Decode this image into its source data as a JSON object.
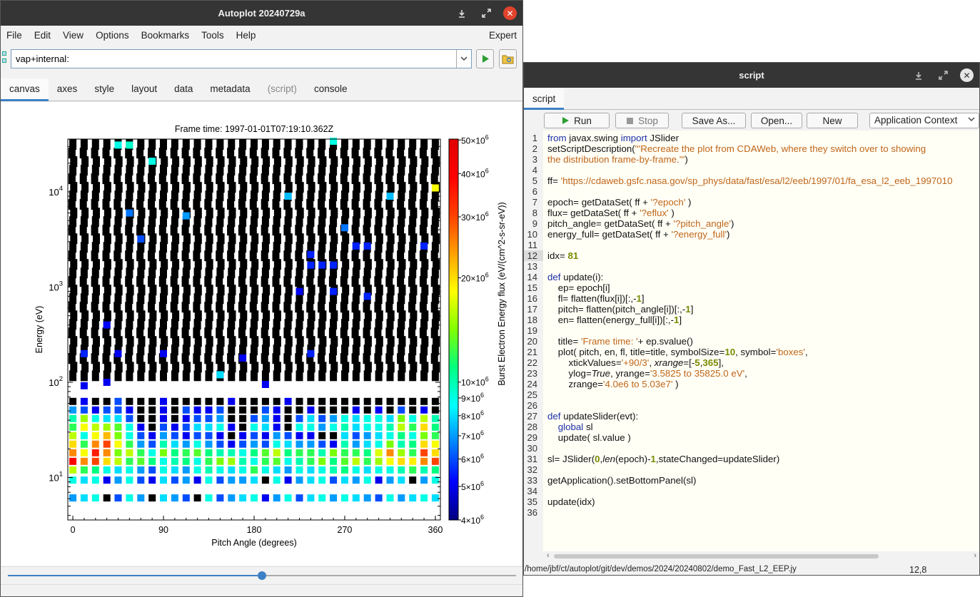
{
  "main_window": {
    "title": "Autoplot 20240729a",
    "menu": [
      "File",
      "Edit",
      "View",
      "Options",
      "Bookmarks",
      "Tools",
      "Help"
    ],
    "expert": "Expert",
    "address": "vap+internal:",
    "tabs": [
      "canvas",
      "axes",
      "style",
      "layout",
      "data",
      "metadata",
      "(script)",
      "console"
    ],
    "active_tab": "canvas",
    "disabled_tab": "(script)",
    "slider_fraction": 0.5
  },
  "chart_data": {
    "type": "heatmap",
    "title": "Frame time: 1997-01-01T07:19:10.362Z",
    "xlabel": "Pitch Angle (degrees)",
    "ylabel": "Energy (eV)",
    "zlabel": "Burst Electron Energy flux (eV/(cm^2-s-sr-eV))",
    "x_ticks": [
      "0",
      "90",
      "180",
      "270",
      "360"
    ],
    "x_tick_values": [
      0,
      90,
      180,
      270,
      360
    ],
    "xlim": [
      -5,
      365
    ],
    "y_scale": "log",
    "ylim": [
      3.5825,
      35825
    ],
    "y_ticks": [
      {
        "base": "10",
        "exp": "1",
        "value": 10
      },
      {
        "base": "10",
        "exp": "2",
        "value": 100
      },
      {
        "base": "10",
        "exp": "3",
        "value": 1000
      },
      {
        "base": "10",
        "exp": "4",
        "value": 10000
      }
    ],
    "z_scale": "log",
    "zlim": [
      4000000,
      50300000
    ],
    "z_ticks": [
      {
        "base": "50×10",
        "exp": "6",
        "value": 50000000
      },
      {
        "base": "40×10",
        "exp": "6",
        "value": 40000000
      },
      {
        "base": "30×10",
        "exp": "6",
        "value": 30000000
      },
      {
        "base": "20×10",
        "exp": "6",
        "value": 20000000
      },
      {
        "base": "10×10",
        "exp": "6",
        "value": 10000000
      },
      {
        "base": "9×10",
        "exp": "6",
        "value": 9000000
      },
      {
        "base": "8×10",
        "exp": "6",
        "value": 8000000
      },
      {
        "base": "7×10",
        "exp": "6",
        "value": 7000000
      },
      {
        "base": "6×10",
        "exp": "6",
        "value": 6000000
      },
      {
        "base": "5×10",
        "exp": "6",
        "value": 5000000
      },
      {
        "base": "4×10",
        "exp": "6",
        "value": 4000000
      }
    ],
    "colorbar": [
      "#000080",
      "#0000ff",
      "#0080ff",
      "#00ffff",
      "#00ff80",
      "#80ff00",
      "#ffff00",
      "#ffa000",
      "#ff4000",
      "#ff0000",
      "#e00000"
    ],
    "pitch_angles": [
      0,
      11.25,
      22.5,
      33.75,
      45,
      56.25,
      67.5,
      78.75,
      90,
      101.25,
      112.5,
      123.75,
      135,
      146.25,
      157.5,
      168.75,
      180,
      191.25,
      202.5,
      213.75,
      225,
      236.25,
      247.5,
      258.75,
      270,
      281.25,
      292.5,
      303.75,
      315,
      326.25,
      337.5,
      348.75,
      360
    ],
    "energies": [
      6.1,
      9.4,
      12.0,
      14.8,
      18.2,
      22.4,
      27.5,
      33.8,
      41.6,
      51.2,
      63.0,
      77.5,
      95.3,
      117.2,
      144.2,
      177.4,
      218.2,
      268.4,
      330.2,
      406.1,
      499.6,
      614.5,
      755.9,
      929.8,
      1143.7,
      1406.8,
      1730.5,
      2128.6,
      2618.3,
      3220.8,
      3961.9,
      4873.3,
      5994.8,
      7374.3,
      9070.6,
      11157.7,
      13725.1,
      16882.3,
      20766.3,
      25544.7,
      31421.8
    ],
    "flux_rows": [
      [
        "7e6",
        "8e6",
        "9e6",
        "4e6",
        "6e6",
        "9e6",
        "7e6",
        "4e6",
        "8e6",
        "7e6",
        "6e6",
        "4e6",
        "9e6",
        "6e6",
        "7e6",
        "8e6",
        "9e6",
        "5e6",
        "7e6",
        "9e6",
        "6e6",
        "8e6",
        "9e6",
        "7e6",
        "9e6",
        "8e6",
        "7e6",
        "6e6",
        "9e6",
        "7e6",
        "8e6",
        "9e6",
        "8e6"
      ],
      [
        "9e6",
        "8e6",
        "9e6",
        "5e6",
        "7e6",
        "9e6",
        "6e6",
        "5e6",
        "8e6",
        "6e6",
        "7e6",
        "5e6",
        "9e6",
        "6e6",
        "7e6",
        "7e6",
        "8e6",
        "4e6",
        "9e6",
        "5e6",
        "7e6",
        "8e6",
        "9e6",
        "6e6",
        "8e6",
        "7e6",
        "9e6",
        "5e6",
        "7e6",
        "8e6",
        "4e6",
        "7e6",
        "9e6"
      ],
      [
        "1.6e7",
        "1.2e7",
        "1.1e7",
        "9e6",
        "8e6",
        "9e6",
        "7e6",
        "6e6",
        "9e6",
        "8e6",
        "7e6",
        "9e6",
        "1e7",
        "9e6",
        "8e6",
        "9e6",
        "1.2e7",
        "9e6",
        "8e6",
        "7e6",
        "9e6",
        "8e6",
        "9e6",
        "1e7",
        "1.1e7",
        "9e6",
        "8e6",
        "9e6",
        "9e6",
        "1e7",
        "1.2e7",
        "1e7",
        "1.1e7"
      ],
      [
        "4e7",
        "2.5e7",
        "3e7",
        "2e7",
        "1.6e7",
        "1.2e7",
        "1.3e7",
        "1.1e7",
        "9e6",
        "1e7",
        "1.1e7",
        "9e6",
        "1.2e7",
        "1.4e7",
        "1.5e7",
        "1e7",
        "9e6",
        "1.2e7",
        "1.3e7",
        "9e6",
        "1e7",
        "1.2e7",
        "1.4e7",
        "1.1e7",
        "1.3e7",
        "1.6e7",
        "1.2e7",
        "1.5e7",
        "1.8e7",
        "2e7",
        "1.9e7",
        "2.5e7",
        "3e7"
      ],
      [
        "2.5e7",
        "1.8e7",
        "3.5e7",
        "2.5e7",
        "1.4e7",
        "1.6e7",
        "1.2e7",
        "9e6",
        "1.4e7",
        "1.1e7",
        "1.2e7",
        "1.3e7",
        "1.1e7",
        "1e7",
        "1e7",
        "9e6",
        "1.1e7",
        "1.3e7",
        "1.6e7",
        "1.1e7",
        "1.2e7",
        "1.2e7",
        "1e7",
        "1.4e7",
        "1.2e7",
        "1.2e7",
        "1.1e7",
        "1.7e7",
        "2.5e7",
        "1.5e7",
        "1.2e7",
        "3e7",
        "2e7"
      ],
      [
        "2e7",
        "1.2e7",
        "2.5e7",
        "3e7",
        "1.8e7",
        "1.2e7",
        "7e6",
        "6e6",
        "1e7",
        "8e6",
        "7e6",
        "9e6",
        "7e6",
        "6e6",
        "5e6",
        "6e6",
        "7e6",
        "6e6",
        "9e6",
        "8e6",
        "7e6",
        "7e6",
        "6e6",
        "5e6",
        "1e7",
        "7e6",
        "8e6",
        "9e6",
        "1.4e7",
        "1e7",
        "1.1e7",
        "2e7",
        "1.8e7"
      ],
      [
        "1.6e7",
        "9e6",
        "1.8e7",
        "2.2e7",
        "1.4e7",
        "9e6",
        "6e6",
        "5e6",
        "7e6",
        "6e6",
        "5e6",
        "6e6",
        "6e6",
        "5e6",
        "4e6",
        "5e6",
        "6e6",
        "5e6",
        "7e6",
        "6e6",
        "5e6",
        "5e6",
        "4e6",
        "4e6",
        "8e6",
        "6e6",
        "7e6",
        "8e6",
        "9e6",
        "1.1e7",
        "9e6",
        "1.4e7",
        "1.2e7"
      ],
      [
        "1.2e7",
        "1.8e7",
        "1.6e7",
        "1.5e7",
        "1.3e7",
        "9e6",
        "5e6",
        "4e6",
        "6e6",
        "5e6",
        "6e6",
        "8e6",
        "8e6",
        "9e6",
        "5e6",
        "4e6",
        "9e6",
        "8e6",
        "5e6",
        "4e6",
        "9e6",
        "9e6",
        "7e6",
        "9e6",
        "1e7",
        "8e6",
        "9e6",
        "9e6",
        "1e7",
        "1.6e7",
        "1.2e7",
        "2e7",
        "1.1e7"
      ],
      [
        "1e7",
        "1.5e7",
        "9e6",
        "8e6",
        "8e6",
        "6e6",
        "4e6",
        "4e6",
        "5e6",
        "4e6",
        "5e6",
        "6e6",
        "6e6",
        "7e6",
        "4e6",
        "4e6",
        "6e6",
        "7e6",
        "5e6",
        "4e6",
        "6e6",
        "8e6",
        "6e6",
        "7e6",
        "9e6",
        "8e6",
        "9e6",
        "9e6",
        "8e6",
        "1.4e7",
        "9e6",
        "1.6e7",
        "1e7"
      ],
      [
        "7e6",
        "6e6",
        "5e6",
        "6e6",
        "6e6",
        "5e6",
        "4e6",
        "4e6",
        "5e6",
        "4e6",
        "6e6",
        "5e6",
        "5e6",
        "6e6",
        "4e6",
        "4e6",
        "4e6",
        "6e6",
        "5e6",
        "4e6",
        "4e6",
        "5e6",
        "4e6",
        "4e6",
        "4e6",
        "5e6",
        "4e6",
        "5e6",
        "4e6",
        "6e6",
        "4e6",
        "5e6",
        "4e6"
      ],
      [
        "4e6",
        "5e6",
        "4e6",
        "4e6",
        "6e6",
        "4e6",
        "4e6",
        "4e6",
        "5e6",
        "4e6",
        "4e6",
        "4e6",
        "4e6",
        "4e6",
        "5e6",
        "4e6",
        "4e6",
        "4e6",
        "4e6",
        "5e6",
        "4e6",
        "4e6",
        "4e6",
        "4e6",
        "4e6",
        "4e6",
        "4e6",
        "4e6",
        "4e6",
        "4e6",
        "4e6",
        "4e6",
        "4e6"
      ]
    ],
    "sparse_points": [
      {
        "x": 11.25,
        "y": 92,
        "z": 5000000
      },
      {
        "x": 33.75,
        "y": 100,
        "z": 5000000
      },
      {
        "x": 33.75,
        "y": 400,
        "z": 5200000
      },
      {
        "x": 11.25,
        "y": 200,
        "z": 5500000
      },
      {
        "x": 45,
        "y": 200,
        "z": 5000000
      },
      {
        "x": 90,
        "y": 200,
        "z": 5000000
      },
      {
        "x": 56.25,
        "y": 6000,
        "z": 6500000
      },
      {
        "x": 67.5,
        "y": 3200,
        "z": 6000000
      },
      {
        "x": 112.5,
        "y": 5600,
        "z": 7000000
      },
      {
        "x": 146.25,
        "y": 120,
        "z": 8000000
      },
      {
        "x": 168.75,
        "y": 180,
        "z": 5000000
      },
      {
        "x": 191.25,
        "y": 95,
        "z": 5000000
      },
      {
        "x": 213.75,
        "y": 9000,
        "z": 7500000
      },
      {
        "x": 225,
        "y": 900,
        "z": 5000000
      },
      {
        "x": 236.25,
        "y": 2200,
        "z": 5500000
      },
      {
        "x": 236.25,
        "y": 1700,
        "z": 5500000
      },
      {
        "x": 247.5,
        "y": 1700,
        "z": 5500000
      },
      {
        "x": 258.75,
        "y": 1700,
        "z": 5500000
      },
      {
        "x": 258.75,
        "y": 900,
        "z": 5500000
      },
      {
        "x": 236.25,
        "y": 200,
        "z": 5500000
      },
      {
        "x": 270,
        "y": 4200,
        "z": 6500000
      },
      {
        "x": 281.25,
        "y": 2700,
        "z": 5500000
      },
      {
        "x": 292.5,
        "y": 2700,
        "z": 5500000
      },
      {
        "x": 292.5,
        "y": 800,
        "z": 5500000
      },
      {
        "x": 315,
        "y": 9000,
        "z": 7500000
      },
      {
        "x": 348.75,
        "y": 2700,
        "z": 5500000
      },
      {
        "x": 360,
        "y": 11000,
        "z": 18000000.0
      },
      {
        "x": 78.75,
        "y": 21000,
        "z": 9000000
      },
      {
        "x": 56.25,
        "y": 31000,
        "z": 9500000
      },
      {
        "x": 45,
        "y": 31000,
        "z": 9000000
      },
      {
        "x": 258.75,
        "y": 34000,
        "z": 9000000
      }
    ]
  },
  "script_window": {
    "title": "script",
    "tab": "script",
    "buttons": {
      "run": "Run",
      "stop": "Stop",
      "save_as": "Save As...",
      "open": "Open...",
      "new": "New"
    },
    "context": "Application Context",
    "line_count": 36,
    "current_line": 12,
    "path": "/home/jbf/ct/autoplot/git/dev/demos/2024/20240802/demo_Fast_L2_EEP.jy",
    "caret": "12,8",
    "code": [
      {
        "n": 1,
        "tok": [
          [
            "kw",
            "from "
          ],
          [
            "",
            "javax.swing "
          ],
          [
            "kw",
            "import "
          ],
          [
            "",
            "JSlider"
          ]
        ]
      },
      {
        "n": 2,
        "tok": [
          [
            "",
            "setScriptDescription("
          ],
          [
            "str",
            "'''Recreate the plot from CDAWeb, where they switch over to showing"
          ]
        ]
      },
      {
        "n": 3,
        "tok": [
          [
            "str",
            "the distribution frame-by-frame.'''"
          ],
          [
            "",
            ")"
          ]
        ]
      },
      {
        "n": 4,
        "tok": []
      },
      {
        "n": 5,
        "tok": [
          [
            "",
            "ff= "
          ],
          [
            "str",
            "'https://cdaweb.gsfc.nasa.gov/sp_phys/data/fast/esa/l2/eeb/1997/01/fa_esa_l2_eeb_1997010"
          ]
        ]
      },
      {
        "n": 6,
        "tok": []
      },
      {
        "n": 7,
        "tok": [
          [
            "",
            "epoch= getDataSet( ff + "
          ],
          [
            "str",
            "'?epoch'"
          ],
          [
            "",
            " )"
          ]
        ]
      },
      {
        "n": 8,
        "tok": [
          [
            "",
            "flux= getDataSet( ff + "
          ],
          [
            "str",
            "'?eflux'"
          ],
          [
            "",
            " )"
          ]
        ]
      },
      {
        "n": 9,
        "tok": [
          [
            "",
            "pitch_angle= getDataSet( ff + "
          ],
          [
            "str",
            "'?pitch_angle'"
          ],
          [
            "",
            ")"
          ]
        ]
      },
      {
        "n": 10,
        "tok": [
          [
            "",
            "energy_full= getDataSet( ff + "
          ],
          [
            "str",
            "'?energy_full'"
          ],
          [
            "",
            ")"
          ]
        ]
      },
      {
        "n": 11,
        "tok": []
      },
      {
        "n": 12,
        "tok": [
          [
            "",
            "idx= "
          ],
          [
            "num",
            "81"
          ]
        ]
      },
      {
        "n": 13,
        "tok": []
      },
      {
        "n": 14,
        "tok": [
          [
            "kw",
            "def "
          ],
          [
            "",
            "update(i):"
          ]
        ]
      },
      {
        "n": 15,
        "tok": [
          [
            "",
            "    ep= epoch[i]"
          ]
        ]
      },
      {
        "n": 16,
        "tok": [
          [
            "",
            "    fl= flatten(flux[i])[:,-"
          ],
          [
            "num",
            "1"
          ],
          [
            "",
            "]"
          ]
        ]
      },
      {
        "n": 17,
        "tok": [
          [
            "",
            "    pitch= flatten(pitch_angle[i])[:,-"
          ],
          [
            "num",
            "1"
          ],
          [
            "",
            "]"
          ]
        ]
      },
      {
        "n": 18,
        "tok": [
          [
            "",
            "    en= flatten(energy_full[i])[:,-"
          ],
          [
            "num",
            "1"
          ],
          [
            "",
            "]"
          ]
        ]
      },
      {
        "n": 19,
        "tok": []
      },
      {
        "n": 20,
        "tok": [
          [
            "",
            "    title= "
          ],
          [
            "str",
            "'Frame time: '"
          ],
          [
            "",
            "+ ep.svalue()"
          ]
        ]
      },
      {
        "n": 21,
        "tok": [
          [
            "",
            "    plot( pitch, en, fl, title=title, symbolSize="
          ],
          [
            "num",
            "10"
          ],
          [
            "",
            ", symbol="
          ],
          [
            "str",
            "'boxes'"
          ],
          [
            "",
            ","
          ]
        ]
      },
      {
        "n": 22,
        "tok": [
          [
            "",
            "        xtickValues="
          ],
          [
            "str",
            "'+90/3'"
          ],
          [
            "",
            ", "
          ],
          [
            "it",
            "xrange"
          ],
          [
            "",
            "=[-"
          ],
          [
            "num",
            "5"
          ],
          [
            "",
            ","
          ],
          [
            "num",
            "365"
          ],
          [
            "",
            "],"
          ]
        ]
      },
      {
        "n": 23,
        "tok": [
          [
            "",
            "        ylog="
          ],
          [
            "it",
            "True"
          ],
          [
            "",
            ", yrange="
          ],
          [
            "str",
            "'3.5825 to 35825.0 eV'"
          ],
          [
            "",
            ","
          ]
        ]
      },
      {
        "n": 24,
        "tok": [
          [
            "",
            "        zrange="
          ],
          [
            "str",
            "'4.0e6 to 5.03e7'"
          ],
          [
            "",
            " )"
          ]
        ]
      },
      {
        "n": 25,
        "tok": []
      },
      {
        "n": 26,
        "tok": []
      },
      {
        "n": 27,
        "tok": [
          [
            "kw",
            "def "
          ],
          [
            "",
            "updateSlider(evt):"
          ]
        ]
      },
      {
        "n": 28,
        "tok": [
          [
            "kw",
            "    global "
          ],
          [
            "",
            "sl"
          ]
        ]
      },
      {
        "n": 29,
        "tok": [
          [
            "",
            "    update( sl.value )"
          ]
        ]
      },
      {
        "n": 30,
        "tok": []
      },
      {
        "n": 31,
        "tok": [
          [
            "",
            "sl= JSlider("
          ],
          [
            "num",
            "0"
          ],
          [
            "",
            ","
          ],
          [
            "it",
            "len"
          ],
          [
            "",
            "(epoch)-"
          ],
          [
            "num",
            "1"
          ],
          [
            "",
            ",stateChanged=updateSlider)"
          ]
        ]
      },
      {
        "n": 32,
        "tok": []
      },
      {
        "n": 33,
        "tok": [
          [
            "",
            "getApplication().setBottomPanel(sl)"
          ]
        ]
      },
      {
        "n": 34,
        "tok": []
      },
      {
        "n": 35,
        "tok": [
          [
            "",
            "update(idx)"
          ]
        ]
      },
      {
        "n": 36,
        "tok": []
      }
    ]
  },
  "colors": {
    "titlebar": "#353535",
    "accent": "#3c80c6",
    "close": "#e0442c",
    "run": "#2e9e32"
  }
}
